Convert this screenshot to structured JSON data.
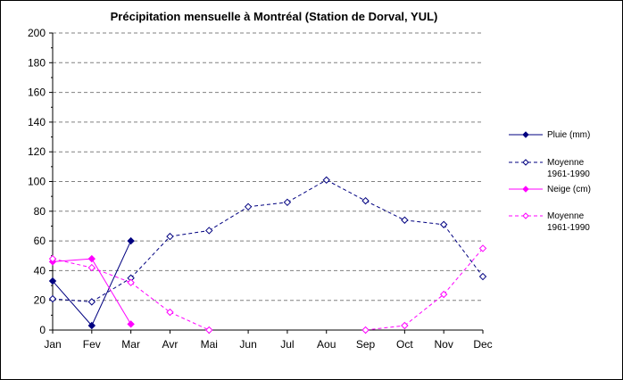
{
  "chart_data": {
    "type": "line",
    "title": "Précipitation mensuelle à Montréal (Station de Dorval, YUL)",
    "categories": [
      "Jan",
      "Fev",
      "Mar",
      "Avr",
      "Mai",
      "Jun",
      "Jul",
      "Aou",
      "Sep",
      "Oct",
      "Nov",
      "Dec"
    ],
    "ylim": [
      0,
      200
    ],
    "yticks": [
      "0",
      "20",
      "40",
      "60",
      "80",
      "100",
      "120",
      "140",
      "160",
      "180",
      "200"
    ],
    "grid": "horizontal dashed",
    "legend_position": "right",
    "series": [
      {
        "name": "Pluie (mm)",
        "color": "#000080",
        "line": "solid",
        "marker": "filled-diamond",
        "values": [
          33,
          3,
          60,
          null,
          null,
          null,
          null,
          null,
          null,
          null,
          null,
          null
        ]
      },
      {
        "name": "Moyenne 1961-1990",
        "color": "#000080",
        "line": "dashed",
        "marker": "hollow-diamond",
        "values": [
          21,
          19,
          35,
          63,
          67,
          83,
          86,
          101,
          87,
          74,
          71,
          36
        ]
      },
      {
        "name": "Neige (cm)",
        "color": "#FF00FF",
        "line": "solid",
        "marker": "filled-diamond",
        "values": [
          46,
          48,
          4,
          null,
          null,
          null,
          null,
          null,
          null,
          null,
          null,
          null
        ]
      },
      {
        "name": "Moyenne 1961-1990",
        "color": "#FF00FF",
        "line": "dashed",
        "marker": "hollow-diamond",
        "values": [
          48,
          42,
          32,
          12,
          0,
          null,
          null,
          null,
          0,
          3,
          24,
          55
        ]
      }
    ]
  }
}
